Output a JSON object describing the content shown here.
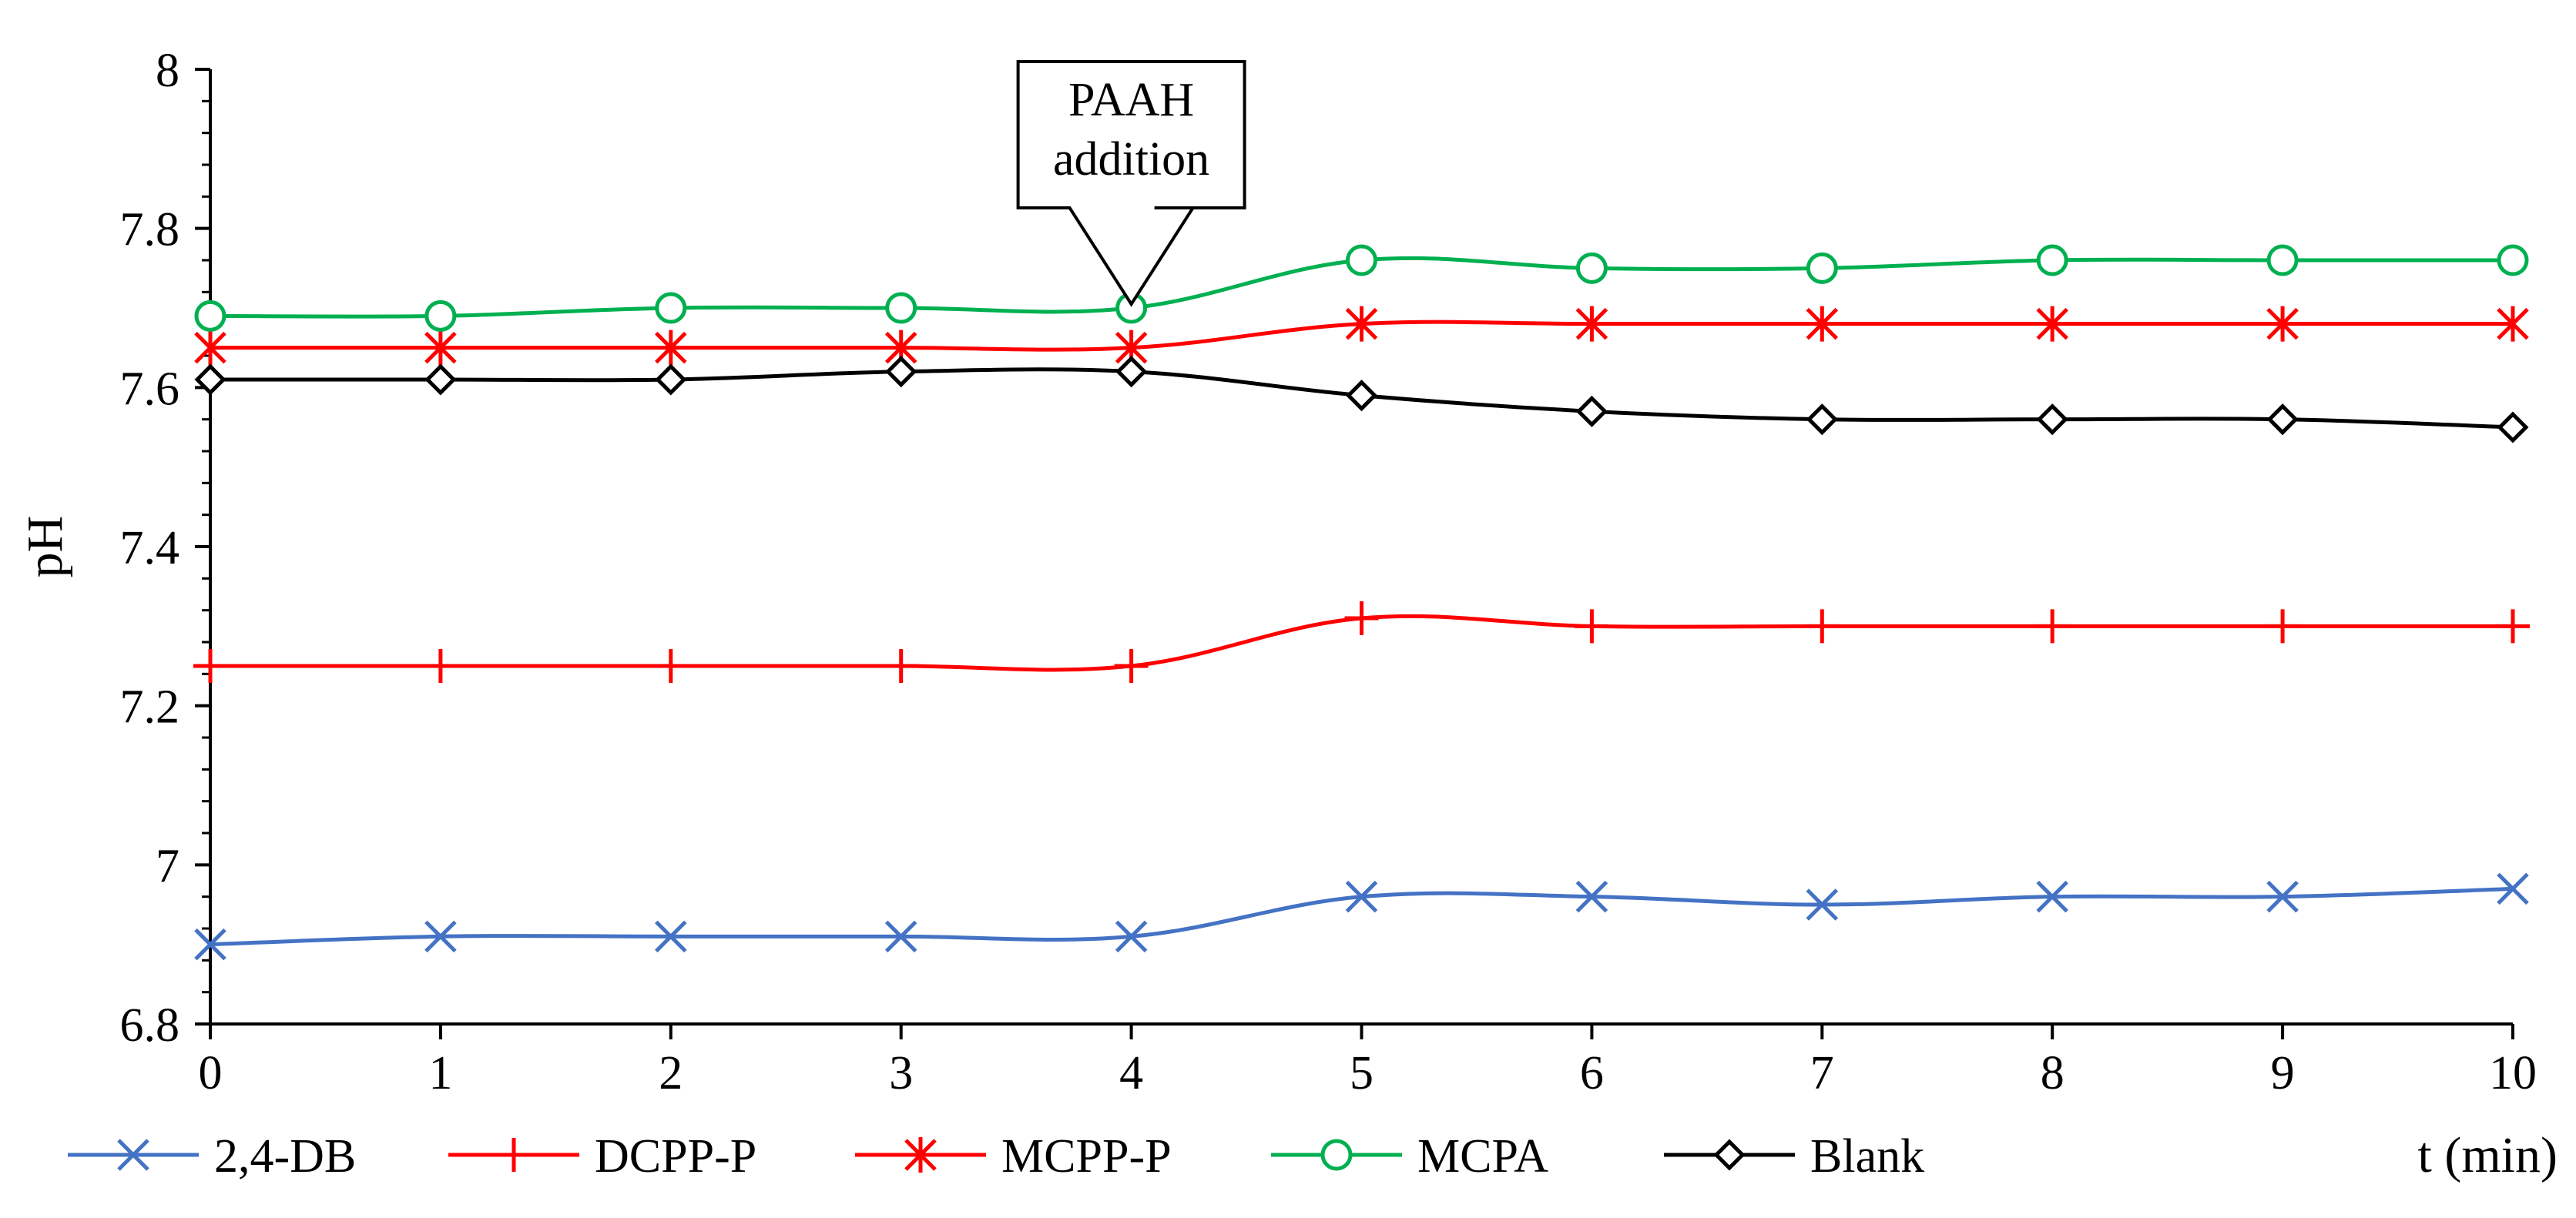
{
  "chart_data": {
    "type": "line",
    "title": "",
    "xlabel": "t (min)",
    "ylabel": "pH",
    "x": [
      0,
      1,
      2,
      3,
      4,
      5,
      6,
      7,
      8,
      9,
      10
    ],
    "xlim": [
      0,
      10
    ],
    "ylim": [
      6.8,
      8
    ],
    "xticks": [
      "0",
      "1",
      "2",
      "3",
      "4",
      "5",
      "6",
      "7",
      "8",
      "9",
      "10"
    ],
    "yticks": [
      "6.8",
      "7",
      "7.2",
      "7.4",
      "7.6",
      "7.8",
      "8"
    ],
    "grid": false,
    "legend_position": "bottom",
    "annotation": {
      "lines": [
        "PAAH",
        "addition"
      ],
      "x": 4,
      "y": 7.7
    },
    "series": [
      {
        "name": "2,4-DB",
        "color": "#4472C4",
        "marker": "x-cross",
        "values": [
          6.9,
          6.91,
          6.91,
          6.91,
          6.91,
          6.96,
          6.96,
          6.95,
          6.96,
          6.96,
          6.97
        ]
      },
      {
        "name": "DCPP-P",
        "color": "#FF0000",
        "marker": "plus",
        "values": [
          7.25,
          7.25,
          7.25,
          7.25,
          7.25,
          7.31,
          7.3,
          7.3,
          7.3,
          7.3,
          7.3
        ]
      },
      {
        "name": "MCPP-P",
        "color": "#FF0000",
        "marker": "asterisk",
        "values": [
          7.65,
          7.65,
          7.65,
          7.65,
          7.65,
          7.68,
          7.68,
          7.68,
          7.68,
          7.68,
          7.68
        ]
      },
      {
        "name": "MCPA",
        "color": "#00B050",
        "marker": "circle",
        "values": [
          7.69,
          7.69,
          7.7,
          7.7,
          7.7,
          7.76,
          7.75,
          7.75,
          7.76,
          7.76,
          7.76
        ]
      },
      {
        "name": "Blank",
        "color": "#000000",
        "marker": "diamond",
        "values": [
          7.61,
          7.61,
          7.61,
          7.62,
          7.62,
          7.59,
          7.57,
          7.56,
          7.56,
          7.56,
          7.55
        ]
      }
    ]
  }
}
